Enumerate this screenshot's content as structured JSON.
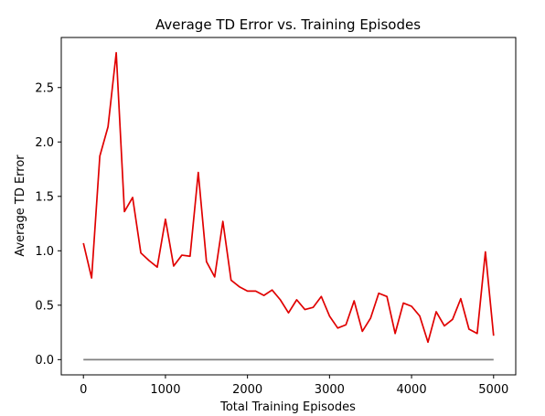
{
  "chart_data": {
    "type": "line",
    "title": "Average TD Error vs. Training Episodes",
    "xlabel": "Total Training Episodes",
    "ylabel": "Average TD Error",
    "xlim": [
      -270,
      5270
    ],
    "ylim": [
      -0.14,
      2.96
    ],
    "xticks": [
      0,
      1000,
      2000,
      3000,
      4000,
      5000
    ],
    "yticks": [
      0.0,
      0.5,
      1.0,
      1.5,
      2.0,
      2.5
    ],
    "xtick_labels": [
      "0",
      "1000",
      "2000",
      "3000",
      "4000",
      "5000"
    ],
    "ytick_labels": [
      "0.0",
      "0.5",
      "1.0",
      "1.5",
      "2.0",
      "2.5"
    ],
    "grid": false,
    "series": [
      {
        "color": "#e00000",
        "x": [
          0,
          100,
          200,
          300,
          400,
          500,
          600,
          700,
          800,
          900,
          1000,
          1100,
          1200,
          1300,
          1400,
          1500,
          1600,
          1700,
          1800,
          1900,
          2000,
          2100,
          2200,
          2300,
          2400,
          2500,
          2600,
          2700,
          2800,
          2900,
          3000,
          3100,
          3200,
          3300,
          3400,
          3500,
          3600,
          3700,
          3800,
          3900,
          4000,
          4100,
          4200,
          4300,
          4400,
          4500,
          4600,
          4700,
          4800,
          4900,
          5000
        ],
        "y": [
          1.07,
          0.75,
          1.87,
          2.14,
          2.82,
          1.36,
          1.49,
          0.98,
          0.91,
          0.85,
          1.29,
          0.86,
          0.96,
          0.95,
          1.72,
          0.9,
          0.76,
          1.27,
          0.73,
          0.67,
          0.63,
          0.63,
          0.59,
          0.64,
          0.55,
          0.43,
          0.55,
          0.46,
          0.48,
          0.58,
          0.4,
          0.29,
          0.32,
          0.54,
          0.26,
          0.38,
          0.61,
          0.58,
          0.24,
          0.52,
          0.49,
          0.4,
          0.16,
          0.44,
          0.31,
          0.37,
          0.56,
          0.28,
          0.24,
          0.99,
          0.22
        ]
      },
      {
        "color": "#808080",
        "x": [
          0,
          5000
        ],
        "y": [
          0.0,
          0.0
        ]
      }
    ]
  }
}
